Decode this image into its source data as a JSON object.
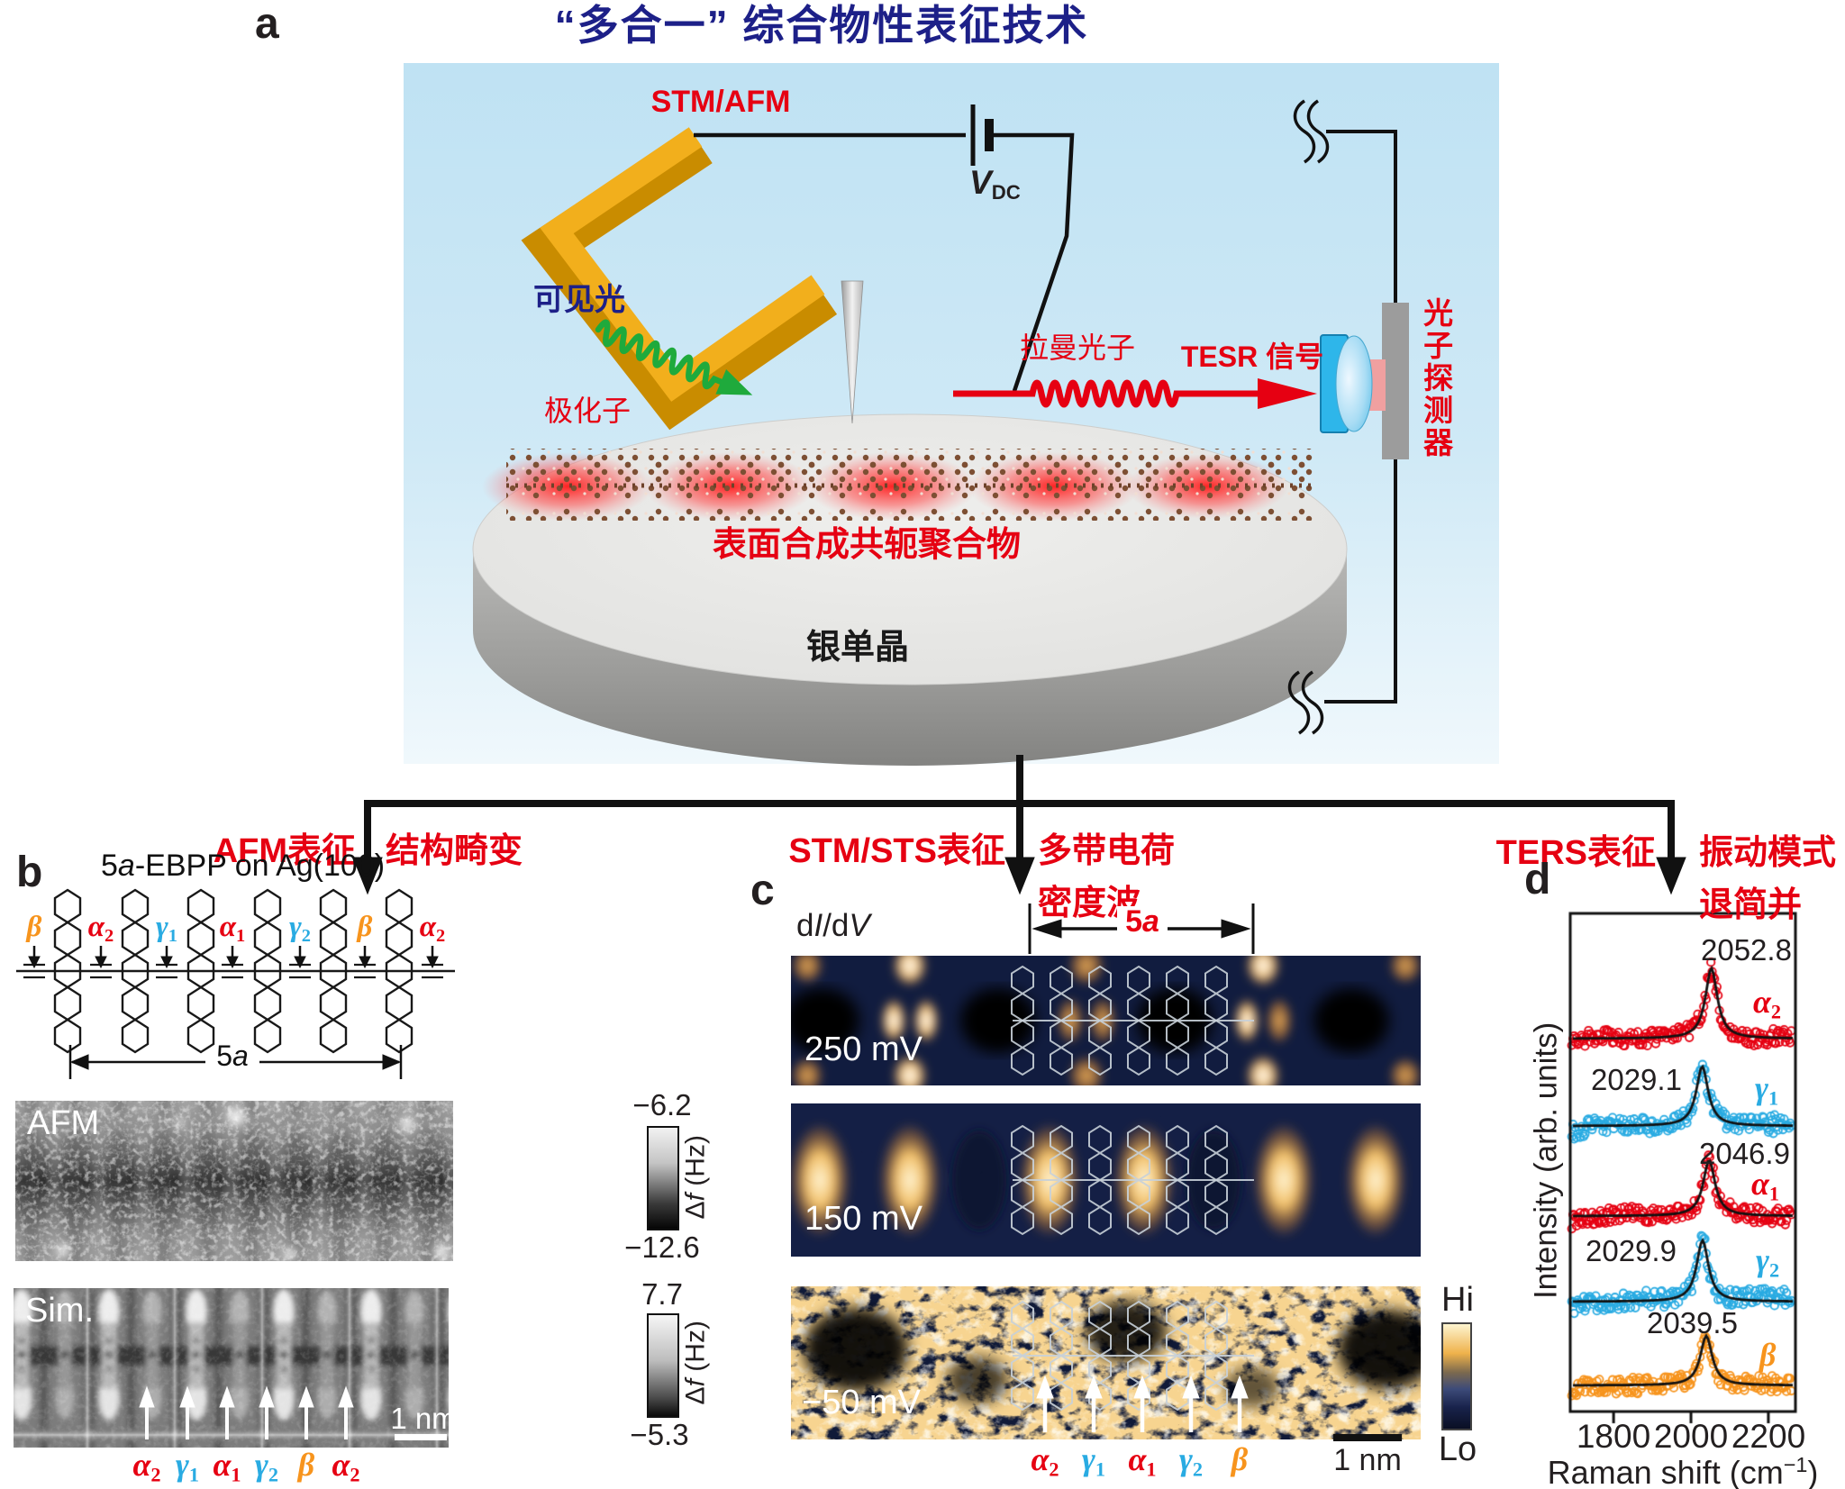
{
  "colors": {
    "accent_red": "#E60012",
    "gamma_blue": "#29ABE2",
    "beta_orange": "#F7941D",
    "title_blue": "#1D2088",
    "green_light": "#1FAA3C"
  },
  "panel_a": {
    "label": "a",
    "title": "“多合一” 综合物性表征技术",
    "probe_label": "STM/AFM",
    "bias_v": "V",
    "bias_sub": "DC",
    "visible_light": "可见光",
    "polaron": "极化子",
    "raman_photon": "拉曼光子",
    "tesr_signal": "TESR 信号",
    "photon_detector": "光子探测器",
    "polymer": "表面合成共轭聚合物",
    "substrate": "银单晶"
  },
  "branches": [
    {
      "technique": "AFM表征",
      "line1": "结构畸变",
      "line2": ""
    },
    {
      "technique": "STM/STS表征",
      "line1": "多带电荷",
      "line2": "密度波"
    },
    {
      "technique": "TERS表征",
      "line1": "振动模式",
      "line2": "退简并"
    }
  ],
  "panel_b": {
    "label": "b",
    "title_num": "5",
    "title_a": "a",
    "title_rest": "-EBPP on Ag(100)",
    "bond_labels": [
      {
        "sym": "β",
        "sub": "",
        "color": "#F7941D"
      },
      {
        "sym": "α",
        "sub": "2",
        "color": "#E60012"
      },
      {
        "sym": "γ",
        "sub": "1",
        "color": "#29ABE2"
      },
      {
        "sym": "α",
        "sub": "1",
        "color": "#E60012"
      },
      {
        "sym": "γ",
        "sub": "2",
        "color": "#29ABE2"
      },
      {
        "sym": "β",
        "sub": "",
        "color": "#F7941D"
      },
      {
        "sym": "α",
        "sub": "2",
        "color": "#E60012"
      }
    ],
    "unit_num": "5",
    "unit_a": "a",
    "afm_label": "AFM",
    "sim_label": "Sim.",
    "afm_scale": {
      "top": "−6.2",
      "bottom": "−12.6",
      "unit_pre": "Δ",
      "unit_f": "f",
      "unit_post": " (Hz)"
    },
    "sim_scale": {
      "top": "7.7",
      "bottom": "−5.3",
      "unit_pre": "Δ",
      "unit_f": "f",
      "unit_post": " (Hz)"
    },
    "scale_bar": "1 nm",
    "site_labels": [
      {
        "sym": "α",
        "sub": "2",
        "color": "#E60012"
      },
      {
        "sym": "γ",
        "sub": "1",
        "color": "#29ABE2"
      },
      {
        "sym": "α",
        "sub": "1",
        "color": "#E60012"
      },
      {
        "sym": "γ",
        "sub": "2",
        "color": "#29ABE2"
      },
      {
        "sym": "β",
        "sub": "",
        "color": "#F7941D"
      },
      {
        "sym": "α",
        "sub": "2",
        "color": "#E60012"
      }
    ]
  },
  "panel_c": {
    "label": "c",
    "sig_d1": "d",
    "sig_I": "I",
    "sig_d2": "/d",
    "sig_V": "V",
    "unit_num": "5",
    "unit_a": "a",
    "maps": [
      {
        "bias": "250 mV"
      },
      {
        "bias": "150 mV"
      },
      {
        "bias": "−50 mV"
      }
    ],
    "scale_hi": "Hi",
    "scale_lo": "Lo",
    "scale_bar": "1 nm",
    "site_labels": [
      {
        "sym": "α",
        "sub": "2",
        "color": "#E60012"
      },
      {
        "sym": "γ",
        "sub": "1",
        "color": "#29ABE2"
      },
      {
        "sym": "α",
        "sub": "1",
        "color": "#E60012"
      },
      {
        "sym": "γ",
        "sub": "2",
        "color": "#29ABE2"
      },
      {
        "sym": "β",
        "sub": "",
        "color": "#F7941D"
      }
    ]
  },
  "panel_d": {
    "label": "d",
    "ylabel": "Intensity (arb. units)",
    "xlabel_pre": "Raman shift (cm",
    "xlabel_sup": "−1",
    "xlabel_post": ")",
    "chart_data": {
      "type": "scatter",
      "xlabel": "Raman shift (cm−1)",
      "ylabel": "Intensity (arb. units)",
      "x_range": [
        1688,
        2270
      ],
      "x_ticks": [
        1800,
        2000,
        2200
      ],
      "x_tick_labels": [
        "1800",
        "2000",
        "2200"
      ],
      "legend_position": "right-of-each-curve",
      "series": [
        {
          "sym": "α",
          "sub": "2",
          "color": "#E60012",
          "peak": 2052.8,
          "peak_label": "2052.8",
          "fit": "lorentzian"
        },
        {
          "sym": "γ",
          "sub": "1",
          "color": "#29ABE2",
          "peak": 2029.1,
          "peak_label": "2029.1",
          "fit": "lorentzian"
        },
        {
          "sym": "α",
          "sub": "1",
          "color": "#E60012",
          "peak": 2046.9,
          "peak_label": "2046.9",
          "fit": "lorentzian"
        },
        {
          "sym": "γ",
          "sub": "2",
          "color": "#29ABE2",
          "peak": 2029.9,
          "peak_label": "2029.9",
          "fit": "lorentzian"
        },
        {
          "sym": "β",
          "sub": "",
          "color": "#F7941D",
          "peak": 2039.5,
          "peak_label": "2039.5",
          "fit": "lorentzian"
        }
      ]
    }
  }
}
